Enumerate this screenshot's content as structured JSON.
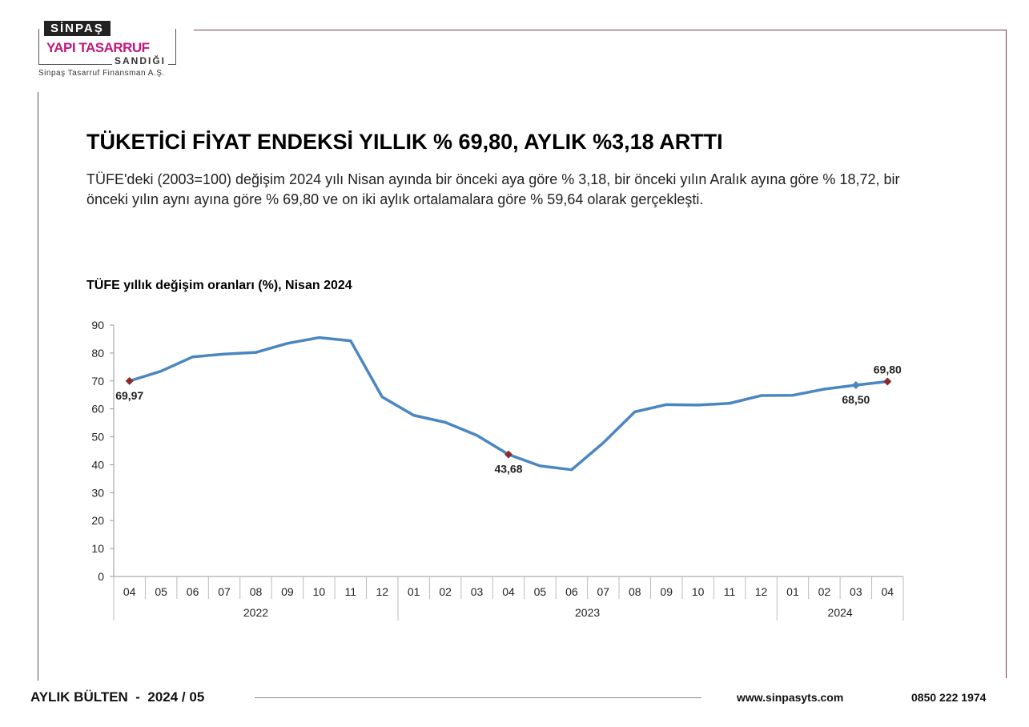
{
  "logo": {
    "top": "SİNPAŞ",
    "middle": "YAPI TASARRUF",
    "bottom": "SANDIĞI",
    "subtitle": "Sinpaş Tasarruf Finansman A.Ş."
  },
  "title": "TÜKETİCİ FİYAT ENDEKSİ YILLIK % 69,80, AYLIK %3,18 ARTTI",
  "body": "TÜFE'deki (2003=100) değişim 2024 yılı Nisan ayında bir önceki aya göre % 3,18, bir önceki yılın Aralık ayına göre % 18,72, bir önceki yılın aynı ayına göre % 69,80 ve on iki aylık ortalamalara göre % 59,64 olarak gerçekleşti.",
  "footer": {
    "bulletin": "AYLIK BÜLTEN  -  2024 / 05",
    "website": "www.sinpasyts.com",
    "phone": "0850 222 1974"
  },
  "colors": {
    "accent": "#c2187a",
    "line": "#4a86c0",
    "marker_highlight": "#8b2a2e",
    "rule": "#7a3a52"
  },
  "chart_data": {
    "type": "line",
    "title": "TÜFE yıllık değişim oranları (%), Nisan 2024",
    "ylim": [
      0,
      90
    ],
    "yticks": [
      0,
      10,
      20,
      30,
      40,
      50,
      60,
      70,
      80,
      90
    ],
    "grid": false,
    "categories": [
      "04",
      "05",
      "06",
      "07",
      "08",
      "09",
      "10",
      "11",
      "12",
      "01",
      "02",
      "03",
      "04",
      "05",
      "06",
      "07",
      "08",
      "09",
      "10",
      "11",
      "12",
      "01",
      "02",
      "03",
      "04"
    ],
    "years": [
      {
        "label": "2022",
        "count": 9
      },
      {
        "label": "2023",
        "count": 12
      },
      {
        "label": "2024",
        "count": 4
      }
    ],
    "series": [
      {
        "values": [
          69.97,
          73.5,
          78.62,
          79.6,
          80.21,
          83.45,
          85.51,
          84.39,
          64.27,
          57.68,
          55.18,
          50.51,
          43.68,
          39.59,
          38.21,
          47.83,
          58.94,
          61.53,
          61.36,
          61.98,
          64.77,
          64.86,
          67.07,
          68.5,
          69.8
        ]
      }
    ],
    "annotations": [
      {
        "index": 0,
        "label": "69,97",
        "position": "below",
        "marker": "#8b2a2e"
      },
      {
        "index": 12,
        "label": "43,68",
        "position": "below",
        "marker": "#8b2a2e"
      },
      {
        "index": 23,
        "label": "68,50",
        "position": "below",
        "marker": "#4a86c0"
      },
      {
        "index": 24,
        "label": "69,80",
        "position": "above",
        "marker": "#8b2a2e"
      }
    ]
  }
}
